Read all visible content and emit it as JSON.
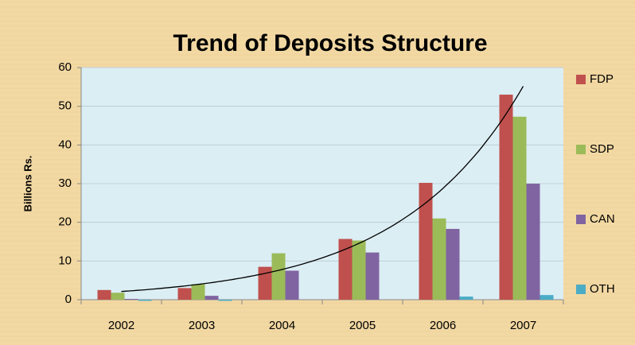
{
  "chart_data": {
    "type": "bar",
    "title": "Trend of Deposits Structure",
    "y_label": "Billions Rs.",
    "categories": [
      "2002",
      "2003",
      "2004",
      "2005",
      "2006",
      "2007"
    ],
    "series": [
      {
        "name": "FDP",
        "color": "#c0504d",
        "values": [
          2.5,
          3,
          8.5,
          15.7,
          30.2,
          53
        ]
      },
      {
        "name": "SDP",
        "color": "#9bbb59",
        "values": [
          1.8,
          4,
          12,
          15.3,
          21,
          47.3
        ]
      },
      {
        "name": "CAN",
        "color": "#8064a2",
        "values": [
          0.2,
          1,
          7.5,
          12.2,
          18.3,
          30
        ]
      },
      {
        "name": "OTH",
        "color": "#4bacc6",
        "values": [
          -0.3,
          -0.3,
          0,
          0,
          0.8,
          1.2
        ]
      }
    ],
    "ylim": [
      0,
      60
    ],
    "yticks": [
      0,
      10,
      20,
      30,
      40,
      50,
      60
    ],
    "grid": true,
    "legend": "right",
    "trendline": "exponential"
  }
}
